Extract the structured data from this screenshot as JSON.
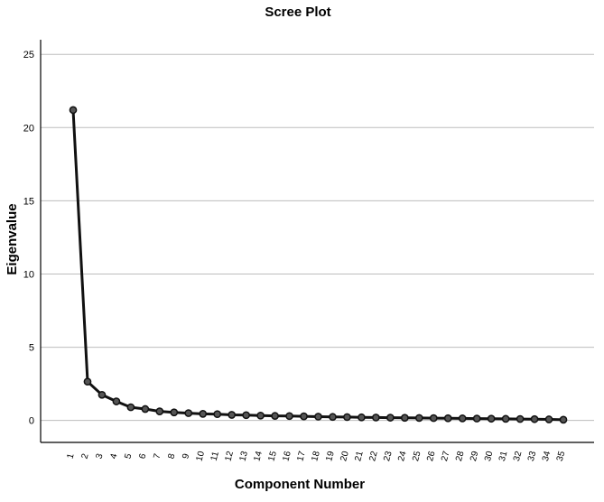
{
  "chart_data": {
    "type": "line",
    "title": "Scree Plot",
    "xlabel": "Component Number",
    "ylabel": "Eigenvalue",
    "ylim": [
      -1.5,
      26
    ],
    "yticks": [
      0,
      5,
      10,
      15,
      20,
      25
    ],
    "grid": true,
    "x": [
      1,
      2,
      3,
      4,
      5,
      6,
      7,
      8,
      9,
      10,
      11,
      12,
      13,
      14,
      15,
      16,
      17,
      18,
      19,
      20,
      21,
      22,
      23,
      24,
      25,
      26,
      27,
      28,
      29,
      30,
      31,
      32,
      33,
      34,
      35
    ],
    "values": [
      21.2,
      2.65,
      1.75,
      1.3,
      0.9,
      0.78,
      0.62,
      0.55,
      0.5,
      0.45,
      0.43,
      0.38,
      0.36,
      0.33,
      0.31,
      0.3,
      0.28,
      0.26,
      0.24,
      0.23,
      0.21,
      0.2,
      0.19,
      0.18,
      0.17,
      0.16,
      0.15,
      0.14,
      0.13,
      0.12,
      0.11,
      0.1,
      0.09,
      0.07,
      0.05
    ]
  }
}
